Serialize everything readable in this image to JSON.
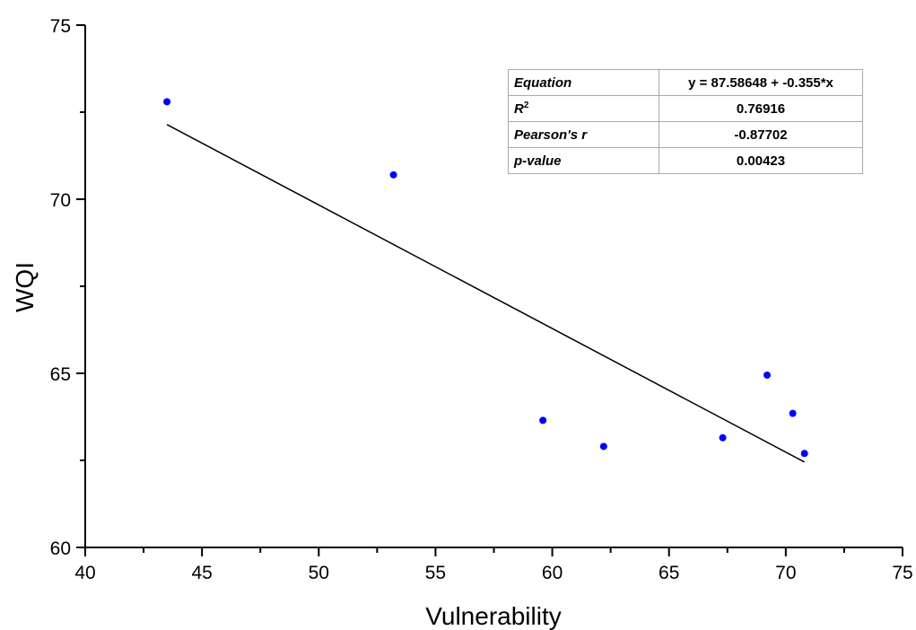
{
  "chart_data": {
    "type": "scatter",
    "title": "",
    "xlabel": "Vulnerability",
    "ylabel": "WQI",
    "xlim": [
      40,
      75
    ],
    "ylim": [
      60,
      75
    ],
    "x_ticks": [
      "40",
      "45",
      "50",
      "55",
      "60",
      "65",
      "70",
      "75"
    ],
    "y_ticks": [
      "60",
      "65",
      "70",
      "75"
    ],
    "grid": false,
    "points": [
      {
        "x": 43.5,
        "y": 72.8
      },
      {
        "x": 53.2,
        "y": 70.7
      },
      {
        "x": 59.6,
        "y": 63.65
      },
      {
        "x": 62.2,
        "y": 62.9
      },
      {
        "x": 67.3,
        "y": 63.15
      },
      {
        "x": 69.2,
        "y": 64.95
      },
      {
        "x": 70.3,
        "y": 63.85
      },
      {
        "x": 70.8,
        "y": 62.7
      }
    ],
    "fit_line": {
      "intercept": 87.58648,
      "slope": -0.355,
      "x_range": [
        43.5,
        70.8
      ]
    },
    "point_color": "#0000ff",
    "line_color": "#000000",
    "stats_table": {
      "equation_label": "Equation",
      "equation_value": "y = 87.58648 + -0.355*x",
      "r2_label_base": "R",
      "r2_label_sup": "2",
      "r2_value": "0.76916",
      "pearson_label": "Pearson's r",
      "pearson_value": "-0.87702",
      "pvalue_label": "p-value",
      "pvalue_value": "0.00423"
    }
  }
}
